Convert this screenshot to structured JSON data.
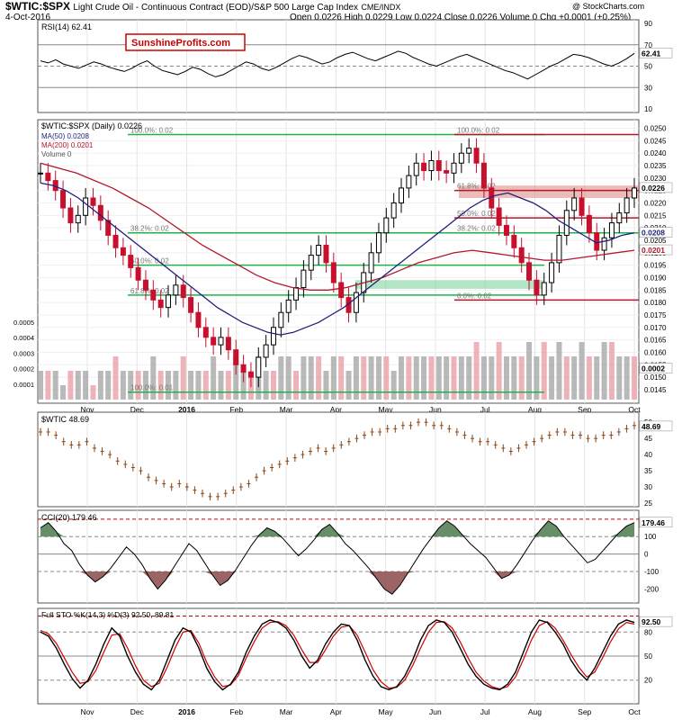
{
  "header": {
    "symbol": "$WTIC:$SPX",
    "description": "Light Crude Oil - Continuous Contract (EOD)/S&P 500 Large Cap Index",
    "exchange": "CME/INDX",
    "date": "4-Oct-2016",
    "ohlc": "Open 0.0226  High 0.0229  Low 0.0224  Close 0.0226  Volume 0  Chg +0.0001 (+0.25%)",
    "credit": "@ StockCharts.com",
    "watermark": "SunshineProfits.com"
  },
  "colors": {
    "price_up": "#000000",
    "price_down": "#c8102e",
    "ma50": "#1f1f7a",
    "ma200": "#b2182b",
    "fib_green": "#1db24b",
    "resist_red": "#d97a72",
    "volume_up": "#a8a8a8",
    "volume_down": "#e8a0a8",
    "wtic_bar": "#8b4513",
    "cci_pos": "#4e7a4e",
    "cci_neg": "#8b4a4a",
    "sto_k": "#000000",
    "sto_d": "#d00000"
  },
  "chart_data": [
    {
      "type": "line",
      "name": "rsi-panel",
      "legend": "RSI(14) 62.41",
      "last_label": "62.41",
      "yticks": [
        "90",
        "70",
        "50",
        "30",
        "10"
      ],
      "ylim": [
        10,
        90
      ],
      "reference_lines": [
        70,
        50,
        30
      ],
      "values": [
        55,
        53,
        56,
        52,
        50,
        48,
        51,
        54,
        52,
        49,
        47,
        45,
        48,
        52,
        55,
        50,
        46,
        44,
        42,
        45,
        49,
        47,
        43,
        40,
        42,
        46,
        50,
        54,
        52,
        48,
        46,
        49,
        53,
        57,
        60,
        58,
        55,
        52,
        54,
        58,
        61,
        63,
        60,
        57,
        55,
        58,
        61,
        64,
        62,
        58,
        55,
        52,
        50,
        53,
        56,
        59,
        61,
        58,
        55,
        52,
        49,
        46,
        44,
        41,
        38,
        42,
        46,
        50,
        53,
        57,
        61,
        60,
        58,
        55,
        52,
        50,
        53,
        57,
        62
      ]
    },
    {
      "type": "candlestick",
      "name": "main-price-panel",
      "legend": "$WTIC:$SPX (Daily) 0.0226",
      "legend_ma50": "MA(50) 0.0208",
      "legend_ma200": "MA(200) 0.0201",
      "legend_volume": "Volume 0",
      "last_labels": {
        "close": "0.0226",
        "ma50": "0.0208",
        "ma200": "0.0201"
      },
      "yticks": [
        "0.0250",
        "0.0245",
        "0.0240",
        "0.0235",
        "0.0230",
        "0.0225",
        "0.0220",
        "0.0215",
        "0.0210",
        "0.0205",
        "0.0200",
        "0.0195",
        "0.0190",
        "0.0185",
        "0.0180",
        "0.0175",
        "0.0170",
        "0.0165",
        "0.0160",
        "0.0155",
        "0.0150",
        "0.0145"
      ],
      "ylim": [
        0.0141,
        0.0252
      ],
      "closes": [
        0.0232,
        0.0229,
        0.0225,
        0.0218,
        0.0212,
        0.0215,
        0.0222,
        0.0219,
        0.0213,
        0.0207,
        0.0202,
        0.0199,
        0.0194,
        0.0189,
        0.0185,
        0.0181,
        0.0178,
        0.0183,
        0.0187,
        0.0182,
        0.0176,
        0.017,
        0.0166,
        0.0163,
        0.0166,
        0.0161,
        0.0155,
        0.0152,
        0.015,
        0.0158,
        0.0163,
        0.017,
        0.0176,
        0.0181,
        0.0186,
        0.0193,
        0.0199,
        0.0203,
        0.0196,
        0.0188,
        0.0182,
        0.0176,
        0.0184,
        0.0192,
        0.02,
        0.0208,
        0.0214,
        0.022,
        0.0226,
        0.0231,
        0.0236,
        0.0233,
        0.0237,
        0.0233,
        0.0232,
        0.0236,
        0.024,
        0.0242,
        0.0236,
        0.0226,
        0.0218,
        0.0211,
        0.0207,
        0.0202,
        0.0196,
        0.0189,
        0.0183,
        0.0188,
        0.0196,
        0.0207,
        0.0217,
        0.0222,
        0.0215,
        0.0208,
        0.0201,
        0.0206,
        0.0212,
        0.0216,
        0.0222,
        0.0226
      ],
      "ma50_closes": [
        0.0228,
        0.0227,
        0.0225,
        0.0222,
        0.0218,
        0.0214,
        0.021,
        0.0206,
        0.0202,
        0.0198,
        0.0194,
        0.019,
        0.0186,
        0.0182,
        0.0178,
        0.0175,
        0.0172,
        0.017,
        0.0168,
        0.0167,
        0.0168,
        0.017,
        0.0172,
        0.0175,
        0.0178,
        0.0182,
        0.0186,
        0.019,
        0.0194,
        0.0198,
        0.0202,
        0.0206,
        0.021,
        0.0214,
        0.0218,
        0.0221,
        0.0223,
        0.0224,
        0.0222,
        0.022,
        0.0217,
        0.0213,
        0.021,
        0.0207,
        0.0204,
        0.0205,
        0.0207,
        0.0208
      ],
      "ma200_closes": [
        0.0236,
        0.0234,
        0.0232,
        0.0229,
        0.0226,
        0.0222,
        0.0218,
        0.0213,
        0.0208,
        0.0203,
        0.0199,
        0.0195,
        0.0191,
        0.0188,
        0.0186,
        0.0185,
        0.0185,
        0.0186,
        0.0188,
        0.019,
        0.0193,
        0.0196,
        0.0198,
        0.02,
        0.0201,
        0.02,
        0.0199,
        0.0198,
        0.0197,
        0.0197,
        0.0198,
        0.0199,
        0.02,
        0.0201
      ],
      "volume_axis": {
        "yticks": [
          "0.0005",
          "0.0004",
          "0.0003",
          "0.0002",
          "0.0001"
        ],
        "last_label": "0.0002"
      },
      "volume": [
        2,
        2,
        2,
        1,
        2,
        2,
        2,
        1,
        2,
        2,
        3,
        2,
        2,
        2,
        2,
        3,
        2,
        2,
        2,
        3,
        2,
        2,
        2,
        3,
        2,
        2,
        3,
        2,
        2,
        3,
        2,
        2,
        3,
        3,
        2,
        3,
        3,
        3,
        2,
        3,
        3,
        2,
        3,
        3,
        3,
        3,
        3,
        2,
        3,
        3,
        3,
        3,
        3,
        3,
        3,
        3,
        3,
        3,
        4,
        3,
        3,
        4,
        3,
        3,
        3,
        4,
        3,
        4,
        3,
        4,
        3,
        3,
        4,
        3,
        3,
        4,
        4,
        3,
        3,
        3
      ],
      "annotations": [
        {
          "text": "100.0%: 0.02",
          "level": 0.02475,
          "line": true,
          "color": "fib_green"
        },
        {
          "text": "38.2%: 0.02",
          "level": 0.0208,
          "line": true,
          "color": "fib_green"
        },
        {
          "text": "50.0%: 0.02",
          "level": 0.0195,
          "line": true,
          "color": "fib_green"
        },
        {
          "text": "61.8%: 0.02",
          "level": 0.0183,
          "line": true,
          "color": "fib_green"
        },
        {
          "text": "100.0%: 0.01",
          "level": 0.0144,
          "line": true,
          "color": "fib_green"
        },
        {
          "text": "100.0%: 0.02",
          "level": 0.02475,
          "line": true,
          "color": "ma200"
        },
        {
          "text": "61.8%: 0.02",
          "level": 0.0225,
          "line": true,
          "color": "ma200"
        },
        {
          "text": "50.0%: 0.02",
          "level": 0.0214,
          "line": true,
          "color": "ma200"
        },
        {
          "text": "38.2%: 0.02",
          "level": 0.0208,
          "line": true,
          "color": "fib_green"
        },
        {
          "text": "0.0%: 0.02",
          "level": 0.0181,
          "line": true,
          "color": "ma200"
        }
      ]
    },
    {
      "type": "bar",
      "name": "wtic-panel",
      "legend": "$WTIC 48.69",
      "last_label": "48.69",
      "yticks": [
        "50",
        "45",
        "40",
        "35",
        "30",
        "25"
      ],
      "ylim": [
        25,
        52
      ],
      "values": [
        47,
        47,
        46,
        44,
        43,
        43,
        44,
        42,
        41,
        40,
        38,
        37,
        36,
        35,
        33,
        32,
        31,
        30,
        31,
        30,
        29,
        28,
        27,
        27,
        28,
        29,
        30,
        31,
        33,
        35,
        36,
        37,
        38,
        39,
        40,
        41,
        42,
        41,
        42,
        43,
        44,
        45,
        46,
        47,
        47,
        48,
        48,
        49,
        49,
        50,
        50,
        49,
        49,
        48,
        47,
        46,
        45,
        44,
        44,
        43,
        42,
        41,
        42,
        43,
        44,
        45,
        46,
        47,
        47,
        46,
        46,
        45,
        45,
        46,
        46,
        47,
        48,
        49
      ]
    },
    {
      "type": "line",
      "name": "cci-panel",
      "legend": "CCI(20) 179.46",
      "last_label": "179.46",
      "yticks": [
        "100",
        "0",
        "-100",
        "-200"
      ],
      "ylim": [
        -260,
        230
      ],
      "reference_lines": [
        200,
        100,
        0,
        -100
      ],
      "values": [
        150,
        180,
        130,
        60,
        20,
        -60,
        -120,
        -160,
        -130,
        -80,
        -20,
        40,
        0,
        -60,
        -140,
        -200,
        -150,
        -80,
        -10,
        60,
        20,
        -50,
        -120,
        -180,
        -150,
        -90,
        -20,
        50,
        110,
        150,
        130,
        90,
        40,
        -10,
        30,
        80,
        140,
        170,
        120,
        60,
        20,
        -30,
        -80,
        -140,
        -200,
        -230,
        -180,
        -110,
        -40,
        30,
        90,
        150,
        190,
        160,
        110,
        60,
        20,
        -20,
        -80,
        -140,
        -120,
        -60,
        10,
        80,
        140,
        190,
        160,
        100,
        50,
        0,
        -50,
        -30,
        20,
        70,
        120,
        160,
        180
      ]
    },
    {
      "type": "line",
      "name": "stochastic-panel",
      "legend": "Full STO %K(14,3) %D(3) 92.50,  89.81",
      "last_label": "92.50",
      "yticks": [
        "80",
        "50",
        "20"
      ],
      "ylim": [
        -5,
        105
      ],
      "reference_lines": [
        100,
        80,
        50,
        20
      ],
      "series": [
        {
          "name": "%K",
          "values": [
            80,
            75,
            60,
            40,
            22,
            10,
            20,
            40,
            65,
            85,
            75,
            50,
            30,
            15,
            8,
            20,
            45,
            70,
            85,
            80,
            60,
            35,
            18,
            8,
            15,
            30,
            55,
            75,
            90,
            95,
            92,
            85,
            70,
            50,
            35,
            45,
            65,
            80,
            90,
            88,
            70,
            45,
            25,
            12,
            8,
            12,
            25,
            45,
            70,
            88,
            95,
            92,
            80,
            60,
            40,
            25,
            15,
            10,
            8,
            15,
            30,
            55,
            80,
            95,
            92,
            80,
            65,
            45,
            30,
            20,
            35,
            55,
            75,
            90,
            95,
            92
          ]
        },
        {
          "name": "%D",
          "values": [
            82,
            78,
            66,
            48,
            30,
            16,
            18,
            32,
            55,
            76,
            78,
            60,
            38,
            20,
            12,
            16,
            36,
            60,
            80,
            82,
            66,
            42,
            24,
            12,
            14,
            26,
            48,
            68,
            85,
            92,
            93,
            88,
            76,
            58,
            42,
            42,
            58,
            75,
            86,
            88,
            76,
            55,
            33,
            18,
            10,
            11,
            20,
            38,
            60,
            80,
            92,
            93,
            85,
            68,
            48,
            30,
            19,
            12,
            9,
            12,
            24,
            46,
            70,
            88,
            93,
            85,
            70,
            52,
            36,
            24,
            30,
            48,
            68,
            84,
            92,
            90
          ]
        }
      ]
    }
  ],
  "x_axis": {
    "labels": [
      "Nov",
      "Dec",
      "2016",
      "Feb",
      "Mar",
      "Apr",
      "May",
      "Jun",
      "Jul",
      "Aug",
      "Sep",
      "Oct"
    ]
  }
}
